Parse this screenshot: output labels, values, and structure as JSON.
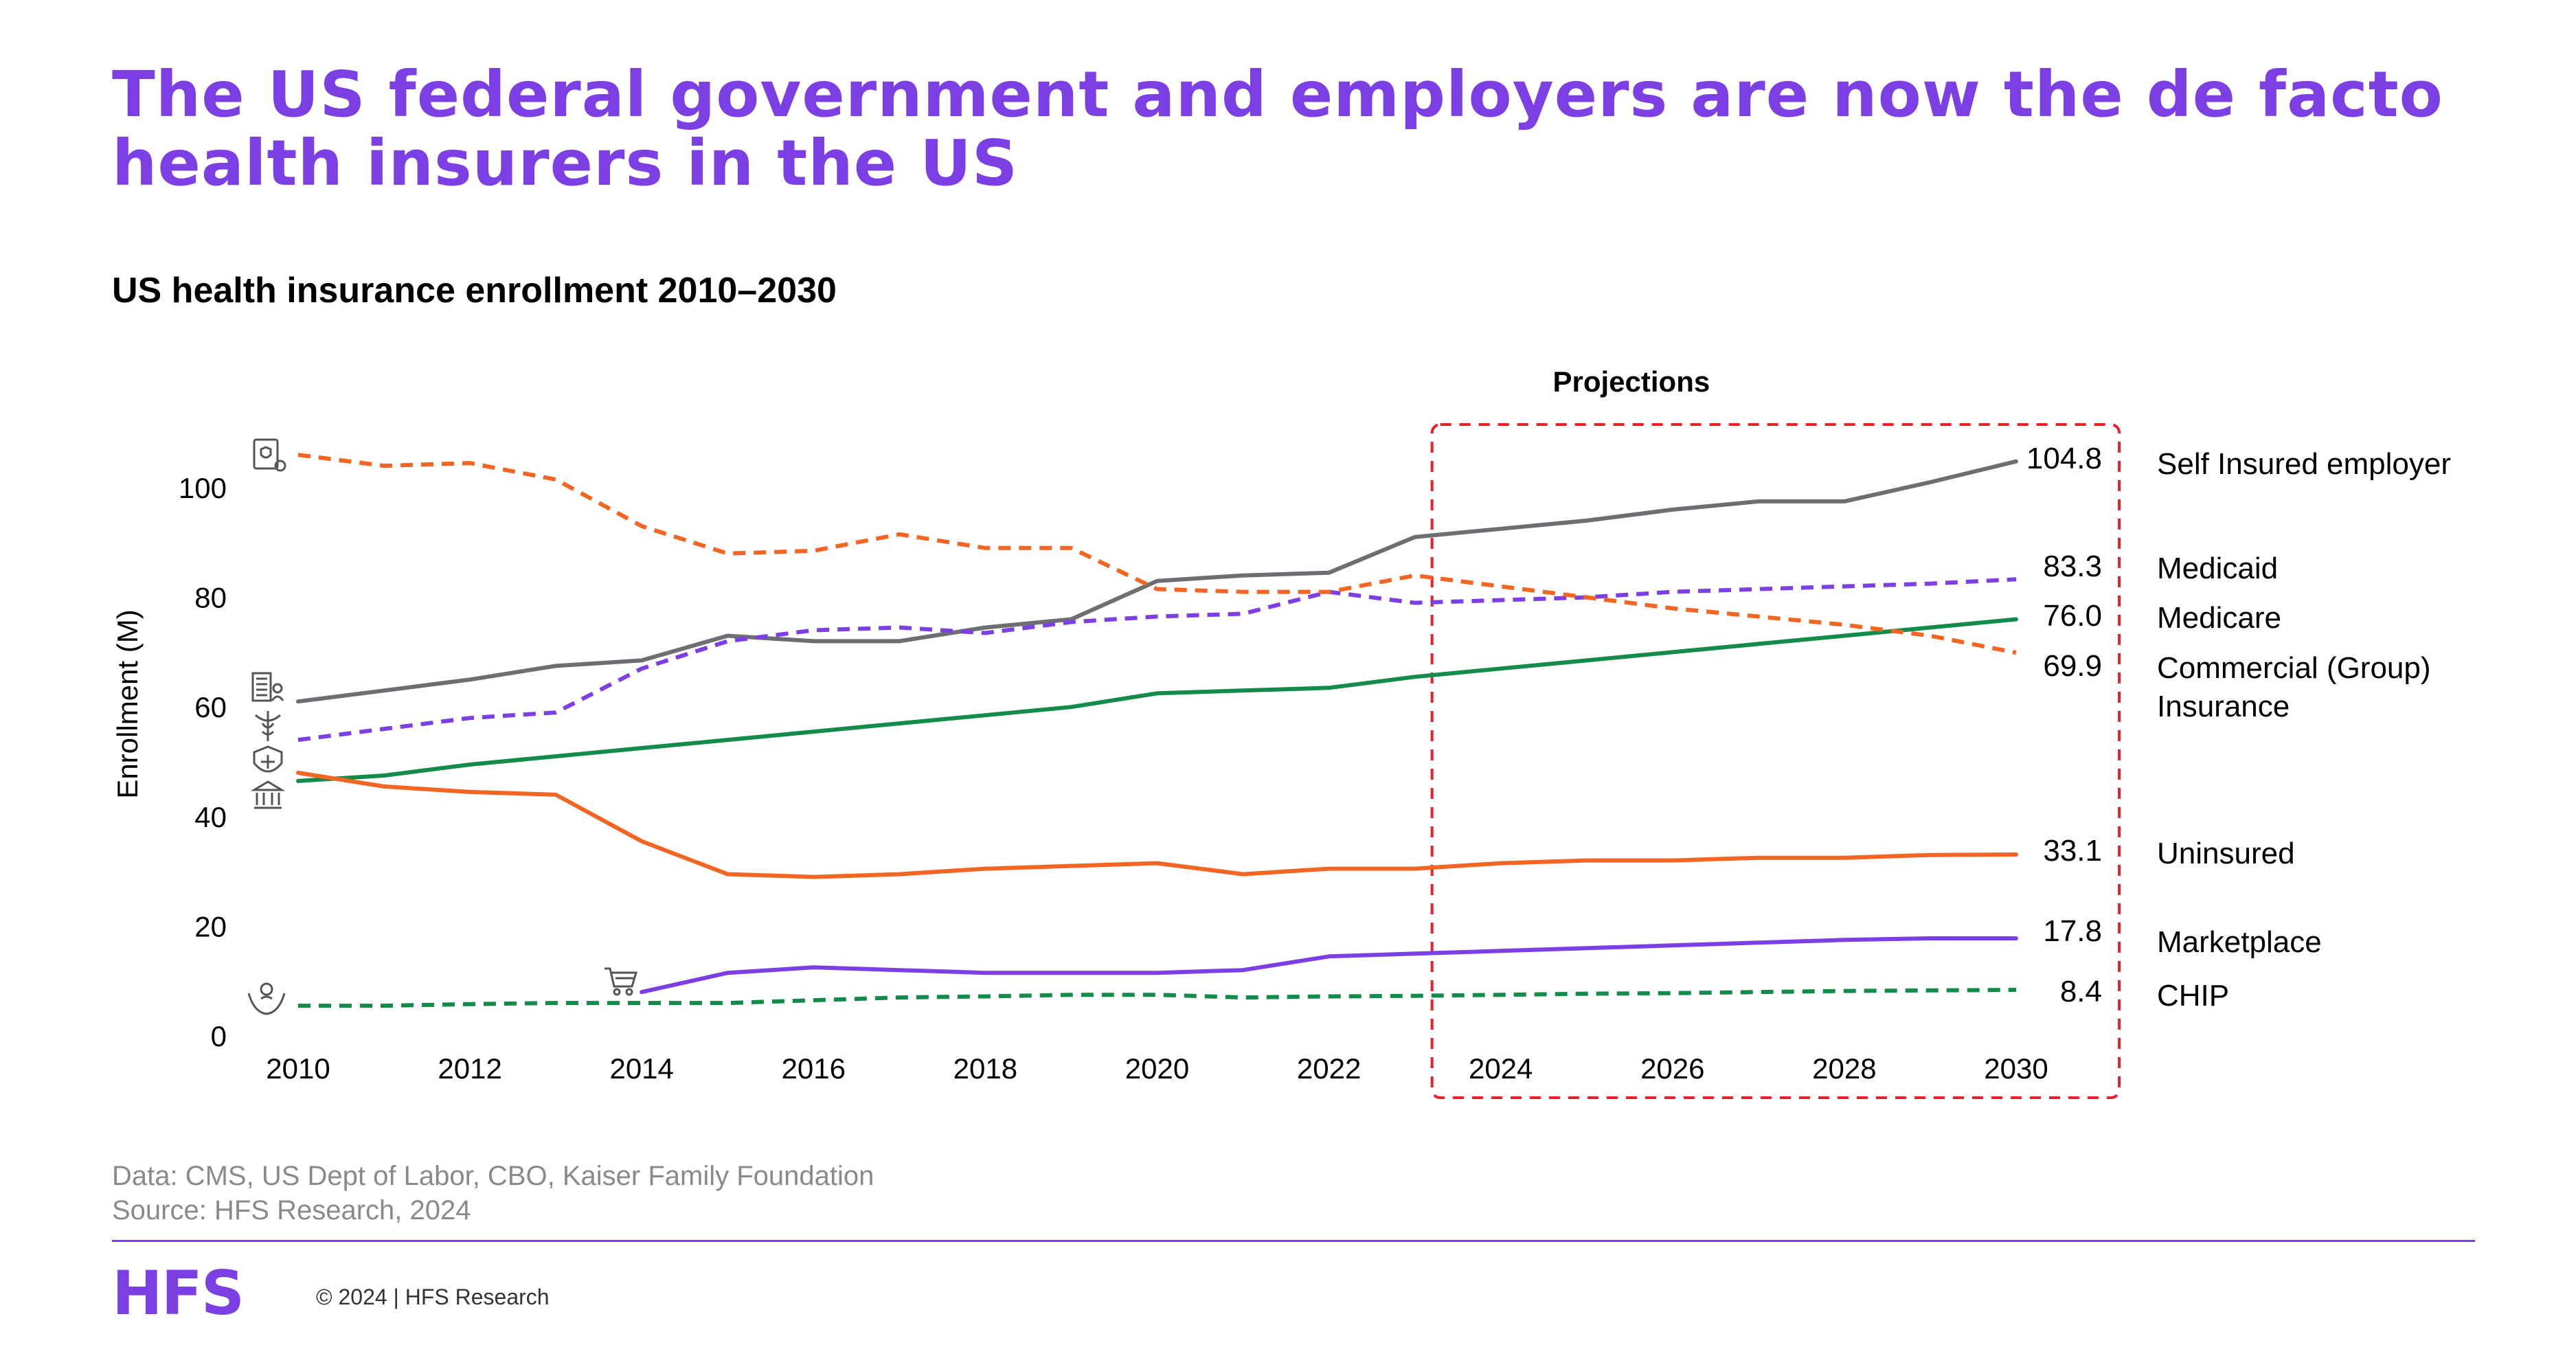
{
  "headline": "The US federal government and employers are now the de facto health insurers in the US",
  "chart_data": {
    "type": "line",
    "title": "US health insurance enrollment 2010–2030",
    "ylabel": "Enrollment (M)",
    "xlabel": "",
    "xlim": [
      2010,
      2030
    ],
    "ylim": [
      0,
      110
    ],
    "x_ticks": [
      2010,
      2012,
      2014,
      2016,
      2018,
      2020,
      2022,
      2024,
      2026,
      2028,
      2030
    ],
    "y_ticks": [
      0,
      20,
      40,
      60,
      80,
      100
    ],
    "grid": false,
    "projection_label": "Projections",
    "projection_range": [
      2023.2,
      2031.2
    ],
    "series": [
      {
        "name": "Self Insured employer",
        "color": "#6d6e71",
        "dash": "solid",
        "end_label": "104.8",
        "x": [
          2010,
          2011,
          2012,
          2013,
          2014,
          2015,
          2016,
          2017,
          2018,
          2019,
          2020,
          2021,
          2022,
          2023,
          2024,
          2025,
          2026,
          2027,
          2028,
          2029,
          2030
        ],
        "y": [
          61,
          63,
          65,
          67.5,
          68.5,
          73,
          72,
          72,
          74.5,
          76,
          83,
          84,
          84.5,
          91,
          92.5,
          94,
          96,
          97.5,
          97.5,
          101,
          104.8
        ]
      },
      {
        "name": "Medicaid",
        "color": "#7b3fe4",
        "dash": "dashed",
        "end_label": "83.3",
        "x": [
          2010,
          2011,
          2012,
          2013,
          2014,
          2015,
          2016,
          2017,
          2018,
          2019,
          2020,
          2021,
          2022,
          2023,
          2024,
          2025,
          2026,
          2027,
          2028,
          2029,
          2030
        ],
        "y": [
          54,
          56,
          58,
          59,
          67,
          72,
          74,
          74.5,
          73.5,
          75.5,
          76.5,
          77,
          81,
          79,
          79.5,
          80,
          81,
          81.5,
          82,
          82.5,
          83.3
        ]
      },
      {
        "name": "Medicare",
        "color": "#138b4a",
        "dash": "solid",
        "end_label": "76.0",
        "x": [
          2010,
          2011,
          2012,
          2013,
          2014,
          2015,
          2016,
          2017,
          2018,
          2019,
          2020,
          2021,
          2022,
          2023,
          2024,
          2025,
          2026,
          2027,
          2028,
          2029,
          2030
        ],
        "y": [
          46.5,
          47.5,
          49.5,
          51,
          52.5,
          54,
          55.5,
          57,
          58.5,
          60,
          62.5,
          63,
          63.5,
          65.5,
          67,
          68.5,
          70,
          71.5,
          73,
          74.5,
          76
        ]
      },
      {
        "name": "Commercial (Group) Insurance",
        "color": "#f26522",
        "dash": "dashed",
        "end_label": "69.9",
        "x": [
          2010,
          2011,
          2012,
          2013,
          2014,
          2015,
          2016,
          2017,
          2018,
          2019,
          2020,
          2021,
          2022,
          2023,
          2024,
          2025,
          2026,
          2027,
          2028,
          2029,
          2030
        ],
        "y": [
          106,
          104,
          104.5,
          101.5,
          93,
          88,
          88.5,
          91.5,
          89,
          89,
          81.5,
          81,
          81,
          84,
          82,
          80,
          78,
          76.5,
          75,
          73,
          69.9
        ]
      },
      {
        "name": "Uninsured",
        "color": "#f26522",
        "dash": "solid",
        "end_label": "33.1",
        "x": [
          2010,
          2011,
          2012,
          2013,
          2014,
          2015,
          2016,
          2017,
          2018,
          2019,
          2020,
          2021,
          2022,
          2023,
          2024,
          2025,
          2026,
          2027,
          2028,
          2029,
          2030
        ],
        "y": [
          48,
          45.5,
          44.5,
          44,
          35.5,
          29.5,
          29,
          29.5,
          30.5,
          31,
          31.5,
          29.5,
          30.5,
          30.5,
          31.5,
          32,
          32,
          32.5,
          32.5,
          33,
          33.1
        ]
      },
      {
        "name": "Marketplace",
        "color": "#7b3fe4",
        "dash": "solid",
        "end_label": "17.8",
        "x": [
          2014,
          2015,
          2016,
          2017,
          2018,
          2019,
          2020,
          2021,
          2022,
          2023,
          2024,
          2025,
          2026,
          2027,
          2028,
          2029,
          2030
        ],
        "y": [
          8,
          11.5,
          12.5,
          12,
          11.5,
          11.5,
          11.5,
          12,
          14.5,
          15,
          15.5,
          16,
          16.5,
          17,
          17.5,
          17.8,
          17.8
        ]
      },
      {
        "name": "CHIP",
        "color": "#138b4a",
        "dash": "dashed",
        "end_label": "8.4",
        "x": [
          2010,
          2011,
          2012,
          2013,
          2014,
          2015,
          2016,
          2017,
          2018,
          2019,
          2020,
          2021,
          2022,
          2023,
          2024,
          2025,
          2026,
          2027,
          2028,
          2029,
          2030
        ],
        "y": [
          5.5,
          5.5,
          5.8,
          6,
          6,
          6,
          6.5,
          7,
          7.2,
          7.5,
          7.5,
          7,
          7.2,
          7.3,
          7.5,
          7.7,
          7.8,
          8,
          8.2,
          8.3,
          8.4
        ]
      }
    ]
  },
  "icons": {
    "commercial": "shield-document-icon",
    "self_insured": "building-people-icon",
    "medicaid": "caduceus-icon",
    "medicare": "medical-shield-icon",
    "uninsured": "bank-icon",
    "marketplace": "shopping-cart-icon",
    "chip": "child-hands-icon"
  },
  "footer": {
    "data_note": "Data: CMS, US Dept of Labor, CBO, Kaiser Family Foundation",
    "source_note": "Source: HFS Research, 2024",
    "logo": "HFS",
    "copyright": "© 2024 | HFS Research"
  }
}
